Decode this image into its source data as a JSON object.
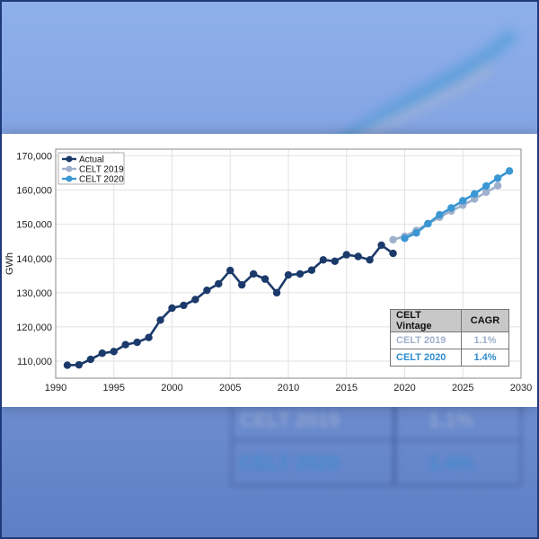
{
  "chart_data": {
    "type": "line",
    "ylabel": "GWh",
    "xlim": [
      1990,
      2030
    ],
    "ylim": [
      105000,
      172000
    ],
    "xticks": [
      1990,
      1995,
      2000,
      2005,
      2010,
      2015,
      2020,
      2025,
      2030
    ],
    "yticks": [
      110000,
      120000,
      130000,
      140000,
      150000,
      160000,
      170000
    ],
    "ytick_labels": [
      "110,000",
      "120,000",
      "130,000",
      "140,000",
      "150,000",
      "160,000",
      "170,000"
    ],
    "grid": true,
    "legend_position": "top-left",
    "series": [
      {
        "name": "Actual",
        "color": "#1b3a6b",
        "x": [
          1991,
          1992,
          1993,
          1994,
          1995,
          1996,
          1997,
          1998,
          1999,
          2000,
          2001,
          2002,
          2003,
          2004,
          2005,
          2006,
          2007,
          2008,
          2009,
          2010,
          2011,
          2012,
          2013,
          2014,
          2015,
          2016,
          2017,
          2018,
          2019
        ],
        "y": [
          108800,
          108900,
          110500,
          112300,
          112800,
          114800,
          115500,
          116900,
          122000,
          125500,
          126300,
          128000,
          130700,
          132600,
          136500,
          132300,
          135500,
          134000,
          130000,
          135200,
          135500,
          136600,
          139600,
          139200,
          141100,
          140600,
          139600,
          143900,
          141500
        ]
      },
      {
        "name": "CELT 2019",
        "color": "#9fb0cc",
        "x": [
          2019,
          2020,
          2021,
          2022,
          2023,
          2024,
          2025,
          2026,
          2027,
          2028
        ],
        "y": [
          145500,
          146500,
          148200,
          150200,
          152100,
          153900,
          155600,
          157400,
          159400,
          161300
        ]
      },
      {
        "name": "CELT 2020",
        "color": "#3b97d3",
        "x": [
          2020,
          2021,
          2022,
          2023,
          2024,
          2025,
          2026,
          2027,
          2028,
          2029
        ],
        "y": [
          145900,
          147500,
          150200,
          152800,
          154800,
          156900,
          158900,
          161200,
          163500,
          165600
        ]
      }
    ]
  },
  "cagr_table": {
    "headers": [
      "CELT Vintage",
      "CAGR"
    ],
    "rows": [
      {
        "vintage": "CELT 2019",
        "cagr": "1.1%",
        "color": "#9fb0cc"
      },
      {
        "vintage": "CELT 2020",
        "cagr": "1.4%",
        "color": "#2e8bd0"
      }
    ]
  }
}
